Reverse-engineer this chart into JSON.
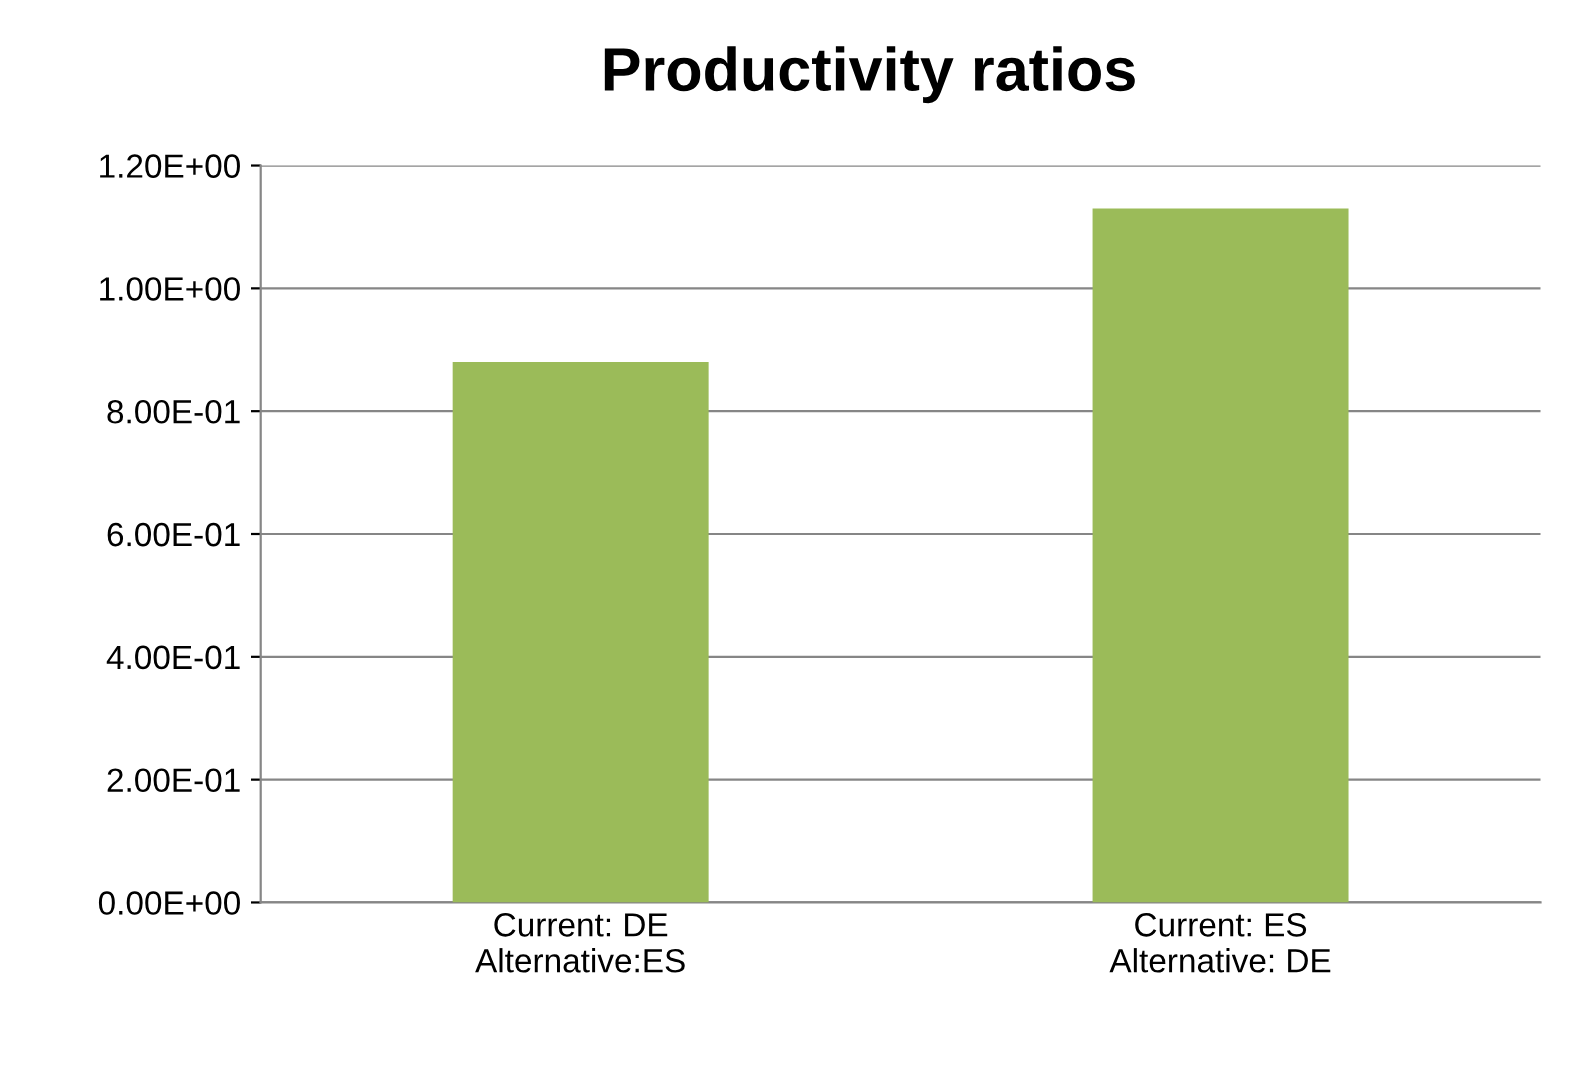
{
  "chart_data": {
    "type": "bar",
    "title": "Productivity ratios",
    "categories": [
      "Current: DE\nAlternative:ES",
      "Current: ES\nAlternative: DE"
    ],
    "values": [
      0.88,
      1.13
    ],
    "color": "#9bbb59",
    "ylim": [
      0,
      1.2
    ],
    "yticks": [
      {
        "value": 0,
        "label": "0.00E+00"
      },
      {
        "value": 0.2,
        "label": "2.00E-01"
      },
      {
        "value": 0.4,
        "label": "4.00E-01"
      },
      {
        "value": 0.6,
        "label": "6.00E-01"
      },
      {
        "value": 0.8,
        "label": "8.00E-01"
      },
      {
        "value": 1.0,
        "label": "1.00E+00"
      },
      {
        "value": 1.2,
        "label": "1.20E+00"
      }
    ],
    "grid": "y"
  }
}
